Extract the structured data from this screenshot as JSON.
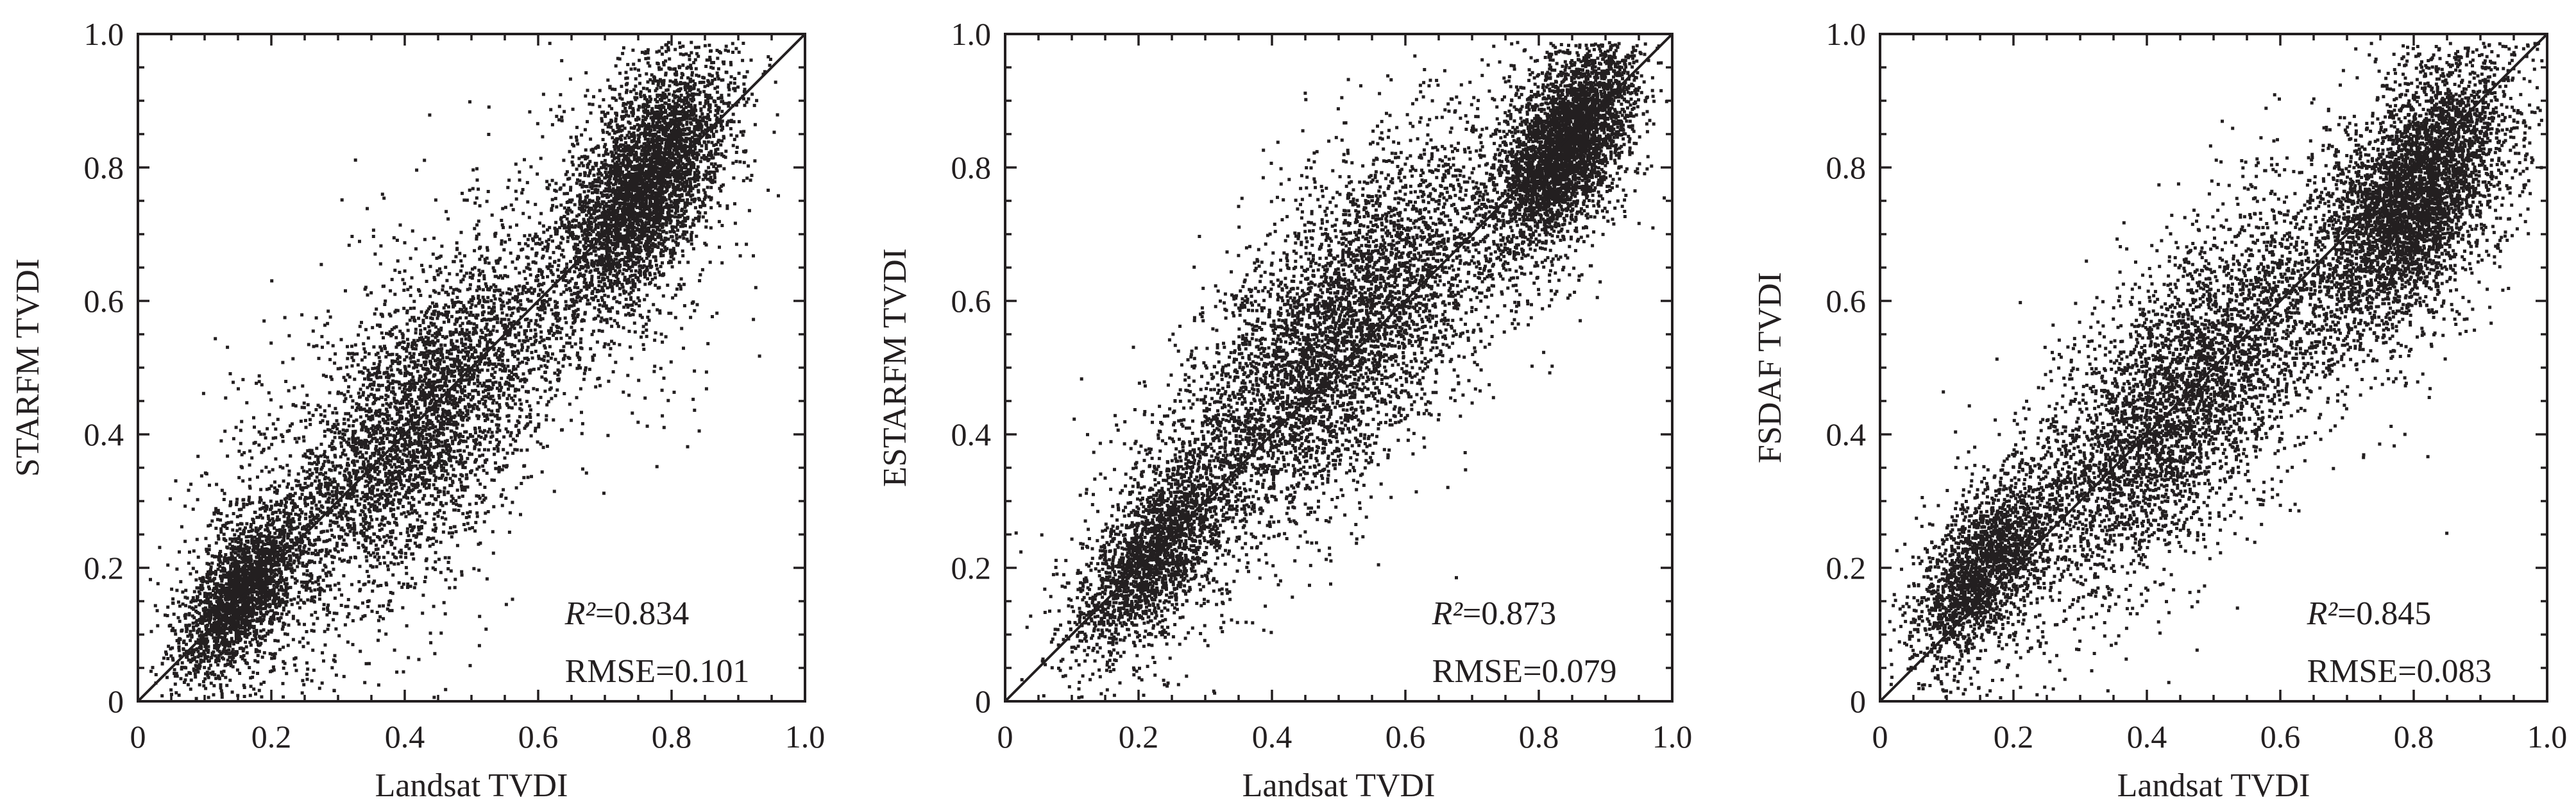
{
  "chart_data": [
    {
      "type": "scatter",
      "xlabel": "Landsat TVDI",
      "ylabel": "STARFM TVDI",
      "xlim": [
        0,
        1.0
      ],
      "ylim": [
        0,
        1.0
      ],
      "xticks": [
        "0",
        "0.2",
        "0.4",
        "0.6",
        "0.8",
        "1.0"
      ],
      "yticks": [
        "0",
        "0.2",
        "0.4",
        "0.6",
        "0.8",
        "1.0"
      ],
      "reference_line": "1:1",
      "r2_label": "R²",
      "r2_value": "=0.834",
      "rmse_label": "RMSE=0.101",
      "r2": 0.834,
      "rmse": 0.101,
      "grid": false,
      "clusters": [
        {
          "x": 0.15,
          "y": 0.16,
          "sx": 0.045,
          "sy": 0.045,
          "w": 0.22
        },
        {
          "x": 0.42,
          "y": 0.42,
          "sx": 0.12,
          "sy": 0.1,
          "w": 0.4
        },
        {
          "x": 0.76,
          "y": 0.78,
          "sx": 0.06,
          "sy": 0.07,
          "w": 0.38
        }
      ],
      "spread": 0.13,
      "point_count": 11000
    },
    {
      "type": "scatter",
      "xlabel": "Landsat TVDI",
      "ylabel": "ESTARFM TVDI",
      "xlim": [
        0,
        1.0
      ],
      "ylim": [
        0,
        1.0
      ],
      "xticks": [
        "0",
        "0.2",
        "0.4",
        "0.6",
        "0.8",
        "1.0"
      ],
      "yticks": [
        "0",
        "0.2",
        "0.4",
        "0.6",
        "0.8",
        "1.0"
      ],
      "reference_line": "1:1",
      "r2_label": "R²",
      "r2_value": "=0.873",
      "rmse_label": "RMSE=0.079",
      "r2": 0.873,
      "rmse": 0.079,
      "grid": false,
      "clusters": [
        {
          "x": 0.22,
          "y": 0.22,
          "sx": 0.06,
          "sy": 0.05,
          "w": 0.2
        },
        {
          "x": 0.5,
          "y": 0.55,
          "sx": 0.13,
          "sy": 0.11,
          "w": 0.45
        },
        {
          "x": 0.84,
          "y": 0.84,
          "sx": 0.05,
          "sy": 0.06,
          "w": 0.35
        }
      ],
      "spread": 0.09,
      "point_count": 11000
    },
    {
      "type": "scatter",
      "xlabel": "Landsat TVDI",
      "ylabel": "FSDAF TVDI",
      "xlim": [
        0,
        1.0
      ],
      "ylim": [
        0,
        1.0
      ],
      "xticks": [
        "0",
        "0.2",
        "0.4",
        "0.6",
        "0.8",
        "1.0"
      ],
      "yticks": [
        "0",
        "0.2",
        "0.4",
        "0.6",
        "0.8",
        "1.0"
      ],
      "reference_line": "1:1",
      "r2_label": "R²",
      "r2_value": "=0.845",
      "rmse_label": "RMSE=0.083",
      "r2": 0.845,
      "rmse": 0.083,
      "grid": false,
      "clusters": [
        {
          "x": 0.15,
          "y": 0.2,
          "sx": 0.05,
          "sy": 0.05,
          "w": 0.18
        },
        {
          "x": 0.45,
          "y": 0.45,
          "sx": 0.13,
          "sy": 0.1,
          "w": 0.42
        },
        {
          "x": 0.8,
          "y": 0.76,
          "sx": 0.07,
          "sy": 0.08,
          "w": 0.4
        }
      ],
      "spread": 0.1,
      "point_count": 11000
    }
  ],
  "colors": {
    "ink": "#231f20",
    "background": "#ffffff"
  }
}
